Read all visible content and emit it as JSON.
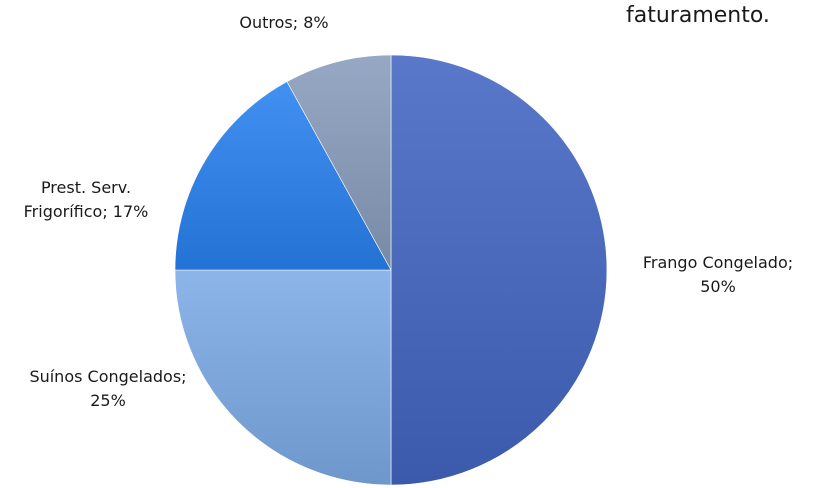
{
  "header": {
    "fragment_text": "faturamento."
  },
  "chart_data": {
    "type": "pie",
    "start_angle_deg": 0,
    "direction": "clockwise",
    "slices": [
      {
        "name": "Frango Congelado",
        "value": 50,
        "label_lines": [
          "Frango Congelado;",
          "50%"
        ],
        "color": "#4866b7"
      },
      {
        "name": "Suínos Congelados",
        "value": 25,
        "label_lines": [
          "Suínos Congelados;",
          "25%"
        ],
        "color": "#7aa3d8"
      },
      {
        "name": "Prest. Serv. Frigorífico",
        "value": 17,
        "label_lines": [
          "Prest. Serv.",
          "Frigorífico; 17%"
        ],
        "color": "#2f7ee0"
      },
      {
        "name": "Outros",
        "value": 8,
        "label_lines": [
          "Outros; 8%"
        ],
        "color": "#8496b2"
      }
    ]
  }
}
